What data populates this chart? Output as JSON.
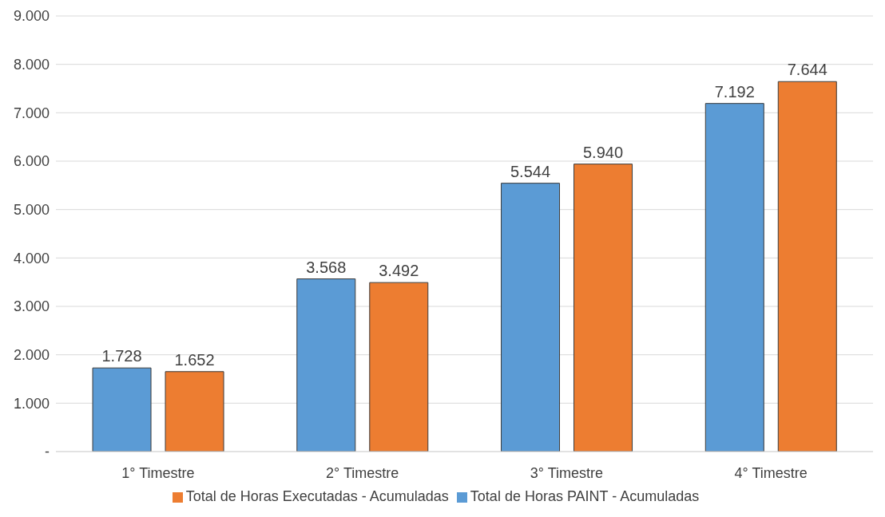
{
  "chart_data": {
    "type": "bar",
    "categories": [
      "1° Timestre",
      "2° Timestre",
      "3° Timestre",
      "4° Timestre"
    ],
    "series": [
      {
        "name": "Total de Horas PAINT - Acumuladas",
        "color": "#5b9bd5",
        "values": [
          1728,
          3568,
          5544,
          7192
        ],
        "value_labels": [
          "1.728",
          "3.568",
          "5.544",
          "7.192"
        ]
      },
      {
        "name": "Total de Horas Executadas - Acumuladas",
        "color": "#ed7d31",
        "values": [
          1652,
          3492,
          5940,
          7644
        ],
        "value_labels": [
          "1.652",
          "3.492",
          "5.940",
          "7.644"
        ]
      }
    ],
    "ylim": [
      0,
      9000
    ],
    "yticks": [
      {
        "value": 0,
        "label": "-"
      },
      {
        "value": 1000,
        "label": "1.000"
      },
      {
        "value": 2000,
        "label": "2.000"
      },
      {
        "value": 3000,
        "label": "3.000"
      },
      {
        "value": 4000,
        "label": "4.000"
      },
      {
        "value": 5000,
        "label": "5.000"
      },
      {
        "value": 6000,
        "label": "6.000"
      },
      {
        "value": 7000,
        "label": "7.000"
      },
      {
        "value": 8000,
        "label": "8.000"
      },
      {
        "value": 9000,
        "label": "9.000"
      }
    ],
    "grid": "y",
    "legend": "bottom"
  }
}
